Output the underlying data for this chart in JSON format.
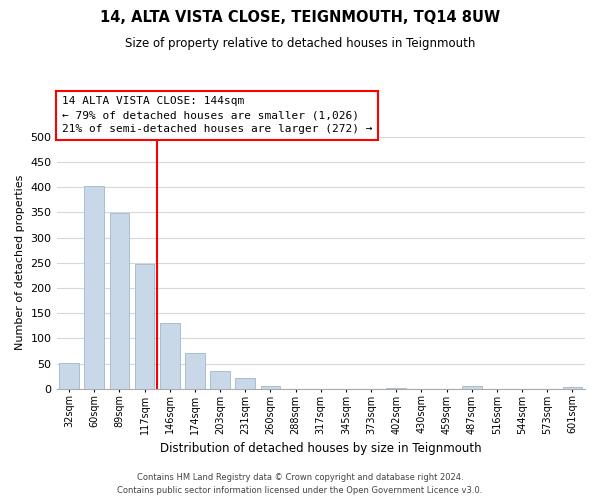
{
  "title": "14, ALTA VISTA CLOSE, TEIGNMOUTH, TQ14 8UW",
  "subtitle": "Size of property relative to detached houses in Teignmouth",
  "xlabel": "Distribution of detached houses by size in Teignmouth",
  "ylabel": "Number of detached properties",
  "bar_labels": [
    "32sqm",
    "60sqm",
    "89sqm",
    "117sqm",
    "146sqm",
    "174sqm",
    "203sqm",
    "231sqm",
    "260sqm",
    "288sqm",
    "317sqm",
    "345sqm",
    "373sqm",
    "402sqm",
    "430sqm",
    "459sqm",
    "487sqm",
    "516sqm",
    "544sqm",
    "573sqm",
    "601sqm"
  ],
  "bar_values": [
    52,
    403,
    348,
    247,
    130,
    71,
    35,
    21,
    6,
    0,
    0,
    0,
    0,
    1,
    0,
    0,
    5,
    0,
    0,
    0,
    3
  ],
  "bar_color": "#c8d8e8",
  "bar_edge_color": "#a0b8cc",
  "vline_color": "red",
  "vline_index": 4,
  "annotation_title": "14 ALTA VISTA CLOSE: 144sqm",
  "annotation_line1": "← 79% of detached houses are smaller (1,026)",
  "annotation_line2": "21% of semi-detached houses are larger (272) →",
  "annotation_box_color": "white",
  "annotation_box_edge": "red",
  "ylim": [
    0,
    500
  ],
  "yticks": [
    0,
    50,
    100,
    150,
    200,
    250,
    300,
    350,
    400,
    450,
    500
  ],
  "footer1": "Contains HM Land Registry data © Crown copyright and database right 2024.",
  "footer2": "Contains public sector information licensed under the Open Government Licence v3.0.",
  "background_color": "#ffffff",
  "grid_color": "#d0d8e0"
}
